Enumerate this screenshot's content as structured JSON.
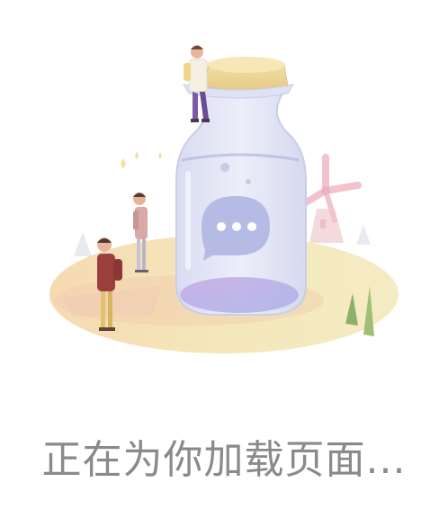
{
  "loading": {
    "message": "正在为你加载页面..."
  },
  "illustration": {
    "chat_icon": "chat-bubble-ellipsis-icon"
  },
  "colors": {
    "text": "#8a8a8a",
    "ground": "#f3e5b2",
    "jar_body": "#e6e8f6",
    "jar_liquid": "#b7a9e6",
    "bubble": "#b9bde6",
    "cork": "#eed79a",
    "windmill": "#f1c2cc"
  }
}
